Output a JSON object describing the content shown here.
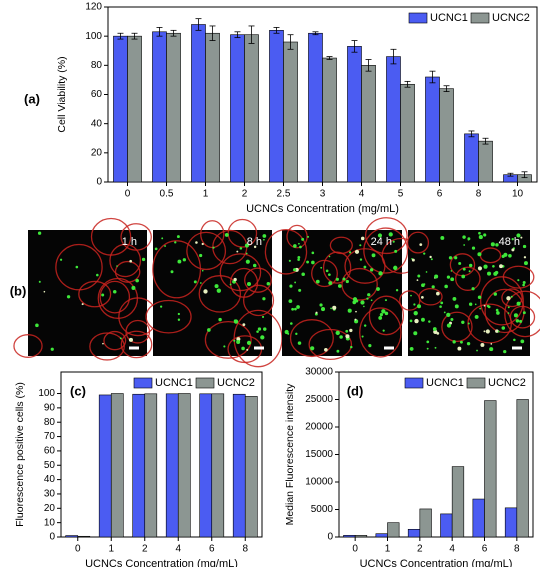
{
  "chart_data": [
    {
      "type": "bar",
      "panel_label": "(a)",
      "x_label": "UCNCs Concentration (mg/mL)",
      "y_label": "Cell Viability (%)",
      "categories": [
        "0",
        "0.5",
        "1",
        "2",
        "2.5",
        "3",
        "4",
        "5",
        "6",
        "8",
        "10"
      ],
      "series": [
        {
          "name": "UCNC1",
          "color": "#4b5cf2",
          "values": [
            100,
            103,
            108,
            101,
            104,
            102,
            93,
            86,
            72,
            33,
            5
          ],
          "errors": [
            2,
            3,
            4,
            2,
            2,
            1,
            4,
            5,
            4,
            2,
            1
          ]
        },
        {
          "name": "UCNC2",
          "color": "#8c9692",
          "values": [
            100,
            102,
            102,
            101,
            96,
            85,
            80,
            67,
            64,
            28,
            5
          ],
          "errors": [
            2,
            2,
            5,
            6,
            5,
            1,
            4,
            2,
            2,
            2,
            2
          ]
        }
      ],
      "ylim": [
        0,
        120
      ],
      "yticks": [
        0,
        20,
        40,
        60,
        80,
        100,
        120
      ],
      "legend": "upper right"
    },
    {
      "type": "bar",
      "panel_label": "(c)",
      "x_label": "UCNCs Concentration (mg/mL)",
      "y_label": "Fluorescence positive cells (%)",
      "categories": [
        "0",
        "1",
        "2",
        "4",
        "6",
        "8"
      ],
      "series": [
        {
          "name": "UCNC1",
          "color": "#4b5cf2",
          "values": [
            1,
            99,
            99.5,
            99.8,
            99.8,
            99.5
          ]
        },
        {
          "name": "UCNC2",
          "color": "#8c9692",
          "values": [
            0.5,
            100,
            99.8,
            100,
            99.8,
            98
          ]
        }
      ],
      "ylim": [
        0,
        115
      ],
      "yticks": [
        0,
        10,
        20,
        30,
        40,
        50,
        60,
        70,
        80,
        90,
        100
      ],
      "legend": "upper right"
    },
    {
      "type": "bar",
      "panel_label": "(d)",
      "x_label": "UCNCs Concentration (mg/mL)",
      "y_label": "Median Fluorescence intensity",
      "categories": [
        "0",
        "1",
        "2",
        "4",
        "6",
        "8"
      ],
      "series": [
        {
          "name": "UCNC1",
          "color": "#4b5cf2",
          "values": [
            300,
            600,
            1400,
            4200,
            6900,
            5300
          ]
        },
        {
          "name": "UCNC2",
          "color": "#8c9692",
          "values": [
            300,
            2600,
            5100,
            12800,
            24800,
            25000
          ]
        }
      ],
      "ylim": [
        0,
        30000
      ],
      "yticks": [
        0,
        5000,
        10000,
        15000,
        20000,
        25000,
        30000
      ],
      "legend": "upper right"
    }
  ],
  "images": {
    "panel_label": "(b)",
    "labels": [
      "1 h",
      "8 h",
      "24 h",
      "48 h"
    ]
  }
}
